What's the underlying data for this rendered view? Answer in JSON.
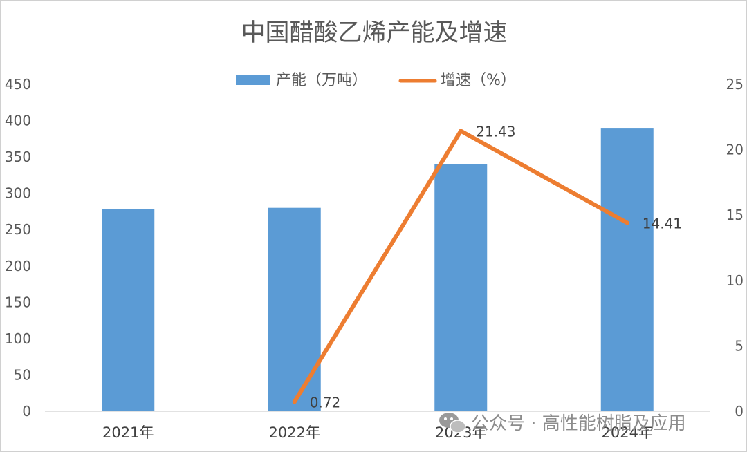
{
  "chart_data": {
    "type": "bar",
    "title": "中国醋酸乙烯产能及增速",
    "categories": [
      "2021年",
      "2022年",
      "2023年",
      "2024年"
    ],
    "series": [
      {
        "name": "产能（万吨）",
        "type": "bar",
        "axis": "left",
        "color": "#5b9bd5",
        "values": [
          278,
          280,
          340,
          390
        ]
      },
      {
        "name": "增速（%）",
        "type": "line",
        "axis": "right",
        "color": "#ed7d31",
        "values": [
          null,
          0.72,
          21.43,
          14.41
        ],
        "data_labels": [
          "",
          "0.72",
          "21.43",
          "14.41"
        ]
      }
    ],
    "y_left": {
      "lim": [
        0,
        450
      ],
      "ticks": [
        "0",
        "50",
        "100",
        "150",
        "200",
        "250",
        "300",
        "350",
        "400",
        "450"
      ]
    },
    "y_right": {
      "lim": [
        0,
        25
      ],
      "ticks": [
        "0",
        "5",
        "10",
        "15",
        "20",
        "25"
      ]
    },
    "grid": false,
    "legend": "top-center"
  },
  "watermark": {
    "text": "公众号 · 高性能树脂及应用",
    "icon": "wechat-icon"
  }
}
